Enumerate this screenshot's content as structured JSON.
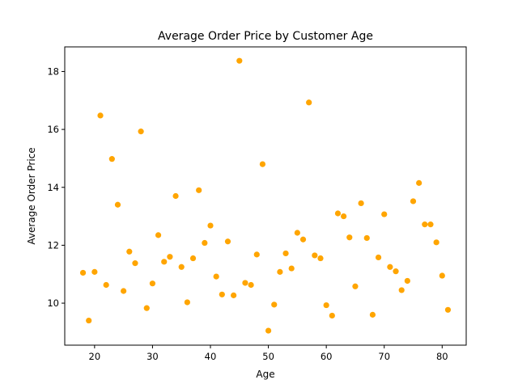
{
  "chart_data": {
    "type": "scatter",
    "title": "Average Order Price by Customer Age",
    "xlabel": "Age",
    "ylabel": "Average Order Price",
    "xlim": [
      14.85,
      84.15
    ],
    "ylim": [
      8.55,
      18.85
    ],
    "xticks": [
      20,
      30,
      40,
      50,
      60,
      70,
      80
    ],
    "yticks": [
      10,
      12,
      14,
      16,
      18
    ],
    "grid": false,
    "legend": "none",
    "marker_color": "#FFA500",
    "series": [
      {
        "points": [
          [
            18,
            11.05
          ],
          [
            19,
            9.4
          ],
          [
            20,
            11.08
          ],
          [
            21,
            16.48
          ],
          [
            22,
            10.63
          ],
          [
            23,
            14.98
          ],
          [
            24,
            13.4
          ],
          [
            25,
            10.42
          ],
          [
            26,
            11.78
          ],
          [
            27,
            11.38
          ],
          [
            28,
            15.93
          ],
          [
            29,
            9.83
          ],
          [
            30,
            10.68
          ],
          [
            31,
            12.35
          ],
          [
            32,
            11.43
          ],
          [
            33,
            11.6
          ],
          [
            34,
            13.7
          ],
          [
            35,
            11.25
          ],
          [
            36,
            10.03
          ],
          [
            37,
            11.55
          ],
          [
            38,
            13.9
          ],
          [
            39,
            12.08
          ],
          [
            40,
            12.68
          ],
          [
            41,
            10.92
          ],
          [
            42,
            10.3
          ],
          [
            43,
            12.13
          ],
          [
            44,
            10.27
          ],
          [
            45,
            18.37
          ],
          [
            46,
            10.7
          ],
          [
            47,
            10.63
          ],
          [
            48,
            11.68
          ],
          [
            49,
            14.8
          ],
          [
            50,
            9.05
          ],
          [
            51,
            9.95
          ],
          [
            52,
            11.08
          ],
          [
            53,
            11.72
          ],
          [
            54,
            11.2
          ],
          [
            55,
            12.43
          ],
          [
            56,
            12.2
          ],
          [
            57,
            16.93
          ],
          [
            58,
            11.65
          ],
          [
            59,
            11.55
          ],
          [
            60,
            9.93
          ],
          [
            61,
            9.57
          ],
          [
            62,
            13.1
          ],
          [
            63,
            13.0
          ],
          [
            64,
            12.27
          ],
          [
            65,
            10.58
          ],
          [
            66,
            13.45
          ],
          [
            67,
            12.25
          ],
          [
            68,
            9.6
          ],
          [
            69,
            11.58
          ],
          [
            70,
            13.07
          ],
          [
            71,
            11.25
          ],
          [
            72,
            11.1
          ],
          [
            73,
            10.45
          ],
          [
            74,
            10.77
          ],
          [
            75,
            13.52
          ],
          [
            76,
            14.15
          ],
          [
            77,
            12.72
          ],
          [
            78,
            12.72
          ],
          [
            79,
            12.1
          ],
          [
            80,
            10.95
          ],
          [
            81,
            9.77
          ]
        ]
      }
    ]
  }
}
